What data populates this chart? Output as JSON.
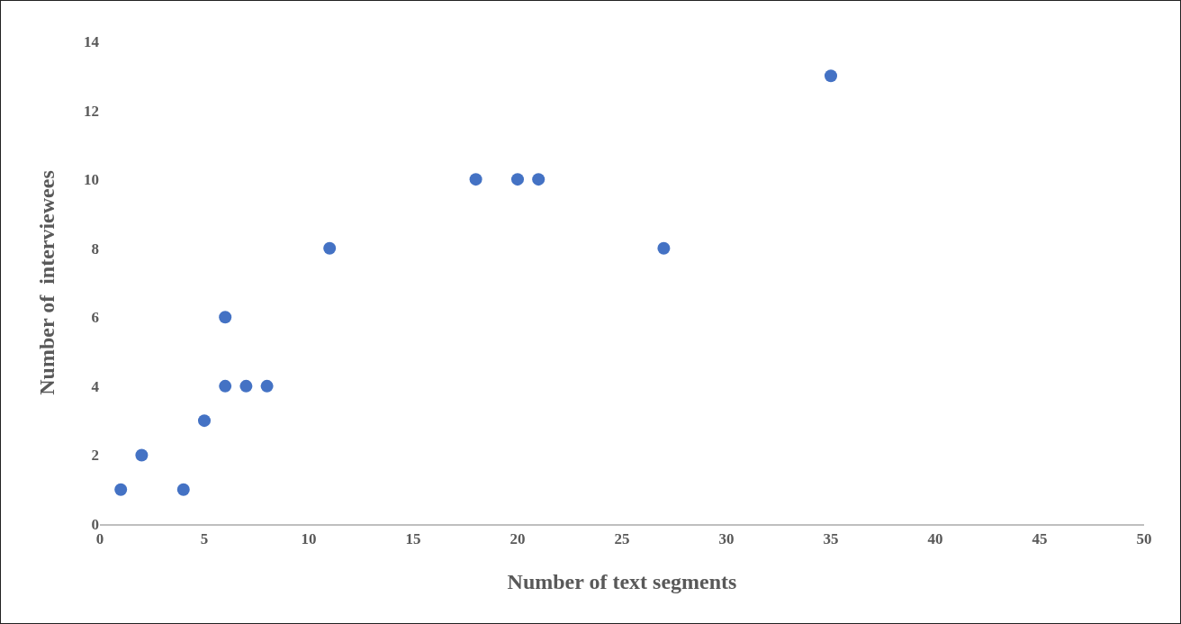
{
  "chart_data": {
    "type": "scatter",
    "xlabel": "Number of text segments",
    "ylabel": "Number of  interviewees",
    "x": [
      1,
      2,
      4,
      5,
      6,
      6,
      7,
      8,
      11,
      18,
      20,
      21,
      27,
      35
    ],
    "values": [
      1,
      2,
      1,
      3,
      6,
      4,
      4,
      4,
      8,
      10,
      10,
      10,
      8,
      13
    ],
    "color": "#4472c4",
    "marker": "circle",
    "xlim": [
      0,
      50
    ],
    "xticks": [
      0,
      5,
      10,
      15,
      20,
      25,
      30,
      35,
      40,
      45,
      50
    ],
    "ylim": [
      0,
      14
    ],
    "yticks": [
      0,
      2,
      4,
      6,
      8,
      10,
      12,
      14
    ],
    "grid": false,
    "legend": false
  }
}
